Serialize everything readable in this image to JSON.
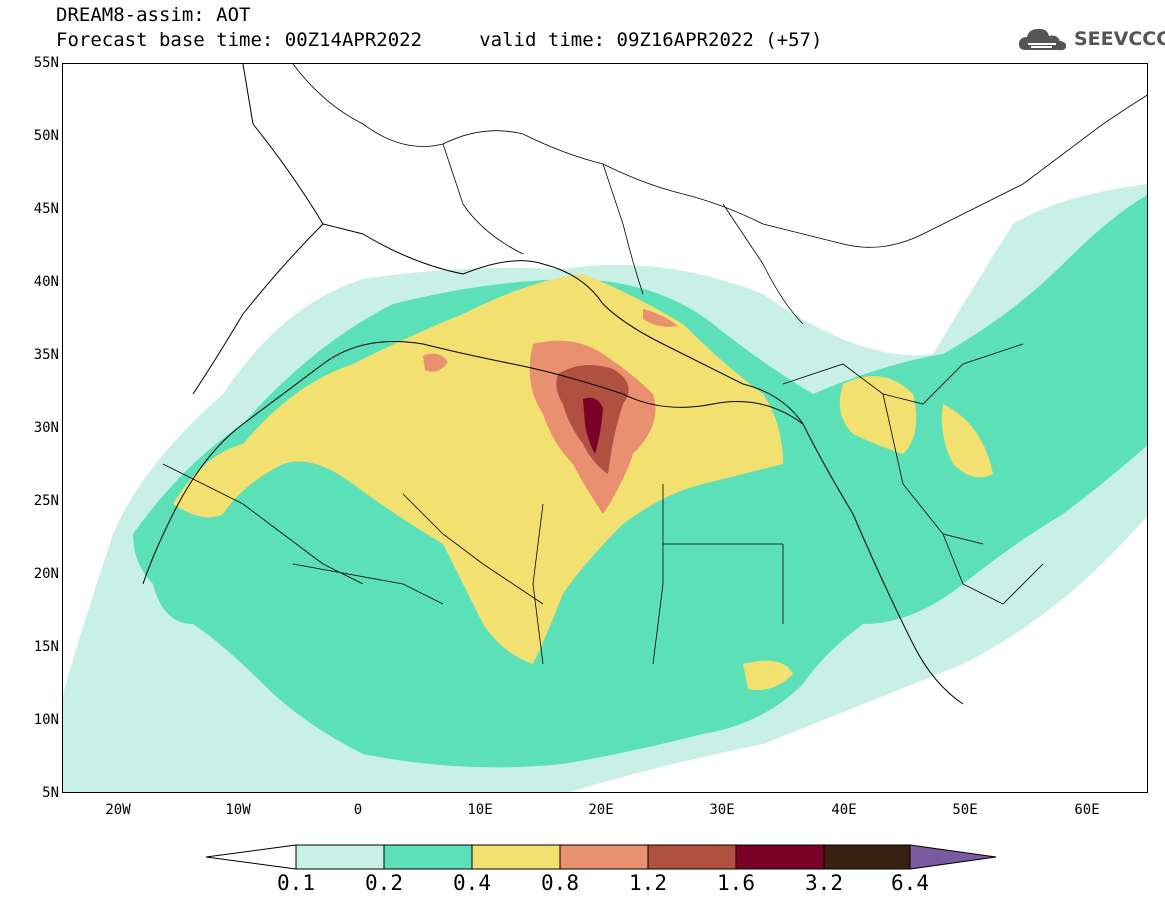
{
  "header": {
    "line1": "DREAM8-assim: AOT",
    "line2": "Forecast base time: 00Z14APR2022     valid time: 09Z16APR2022 (+57)"
  },
  "logo": {
    "text": "SEEVCCC",
    "icon": "cloud-icon"
  },
  "axes": {
    "y_ticks": [
      "55N",
      "50N",
      "45N",
      "40N",
      "35N",
      "30N",
      "25N",
      "20N",
      "15N",
      "10N",
      "5N"
    ],
    "x_ticks": [
      "20W",
      "10W",
      "0",
      "10E",
      "20E",
      "30E",
      "40E",
      "50E",
      "60E"
    ]
  },
  "colorbar": {
    "labels": [
      "0.1",
      "0.2",
      "0.4",
      "0.8",
      "1.2",
      "1.6",
      "3.2",
      "6.4"
    ],
    "colors": [
      "#ffffff",
      "#c8f0e6",
      "#5ce0b8",
      "#f2e070",
      "#e89070",
      "#b05040",
      "#7a0028",
      "#3a2010",
      "#7a5aa0"
    ]
  }
}
